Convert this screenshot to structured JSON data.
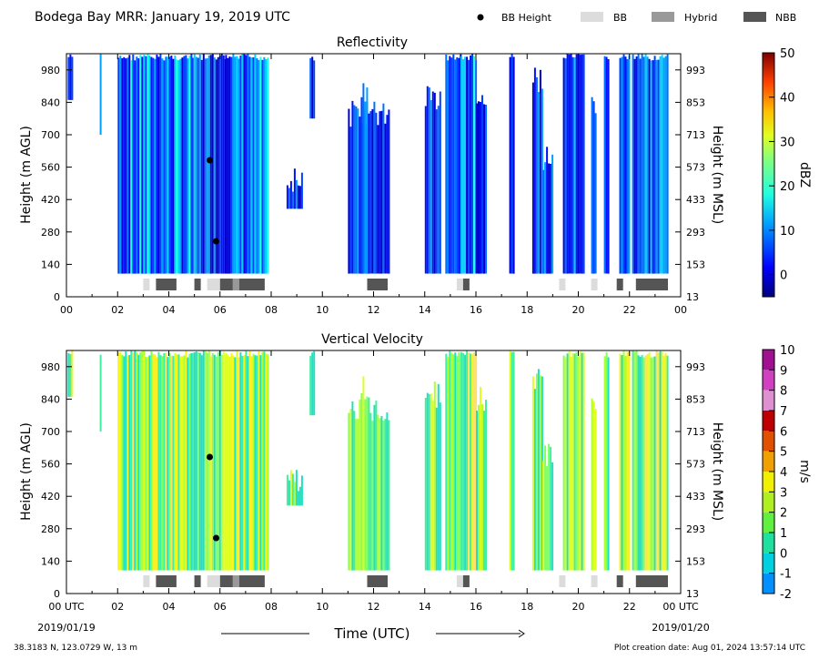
{
  "header": {
    "title": "Bodega Bay MRR:  January 19, 2019 UTC",
    "legend": [
      {
        "label": "BB Height",
        "kind": "dot",
        "color": "#000000"
      },
      {
        "label": "BB",
        "kind": "box",
        "color": "#dcdcdc"
      },
      {
        "label": "Hybrid",
        "kind": "box",
        "color": "#999999"
      },
      {
        "label": "NBB",
        "kind": "box",
        "color": "#555555"
      }
    ]
  },
  "footer": {
    "location": "38.3183 N, 123.0729 W, 13 m",
    "created": "Plot creation date: Aug 01, 2024 13:57:14 UTC"
  },
  "chart_data": [
    {
      "type": "heatmap",
      "title": "Reflectivity",
      "ylabel": "Height (m AGL)",
      "ylabel_right": "Height (m MSL)",
      "x_range_hours": [
        0,
        24
      ],
      "ylim": [
        0,
        1050
      ],
      "x_ticks": [
        "00",
        "02",
        "04",
        "06",
        "08",
        "10",
        "12",
        "14",
        "16",
        "18",
        "20",
        "22",
        "00"
      ],
      "y_ticks_left": [
        0,
        140,
        280,
        420,
        560,
        700,
        840,
        980
      ],
      "y_ticks_right": [
        13,
        153,
        293,
        433,
        573,
        713,
        853,
        993
      ],
      "colorbar": {
        "label": "dBZ",
        "min": -5,
        "max": 50,
        "ticks": [
          0,
          10,
          20,
          30,
          40,
          50
        ]
      },
      "bb_height_points": [
        {
          "hour": 5.6,
          "height_m": 590
        },
        {
          "hour": 5.85,
          "height_m": 240
        }
      ],
      "bb_segments": [
        {
          "start": 3.0,
          "end": 3.25,
          "type": "BB"
        },
        {
          "start": 3.5,
          "end": 4.3,
          "type": "NBB"
        },
        {
          "start": 5.0,
          "end": 5.25,
          "type": "NBB"
        },
        {
          "start": 5.5,
          "end": 6.0,
          "type": "BB"
        },
        {
          "start": 6.0,
          "end": 6.5,
          "type": "NBB"
        },
        {
          "start": 6.5,
          "end": 6.75,
          "type": "Hybrid"
        },
        {
          "start": 6.75,
          "end": 7.75,
          "type": "NBB"
        },
        {
          "start": 11.75,
          "end": 12.55,
          "type": "NBB"
        },
        {
          "start": 15.25,
          "end": 15.5,
          "type": "BB"
        },
        {
          "start": 15.5,
          "end": 15.75,
          "type": "NBB"
        },
        {
          "start": 19.25,
          "end": 19.5,
          "type": "BB"
        },
        {
          "start": 20.5,
          "end": 20.75,
          "type": "BB"
        },
        {
          "start": 21.5,
          "end": 21.75,
          "type": "NBB"
        },
        {
          "start": 22.25,
          "end": 23.5,
          "type": "NBB"
        }
      ]
    },
    {
      "type": "heatmap",
      "title": "Vertical Velocity",
      "ylabel": "Height (m AGL)",
      "ylabel_right": "Height (m MSL)",
      "xlabel": "Time (UTC)",
      "x_range_hours": [
        0,
        24
      ],
      "ylim": [
        0,
        1050
      ],
      "x_ticks": [
        "00 UTC",
        "02",
        "04",
        "06",
        "08",
        "10",
        "12",
        "14",
        "16",
        "18",
        "20",
        "22",
        "00 UTC"
      ],
      "x_dates": [
        "2019/01/19",
        "2019/01/20"
      ],
      "y_ticks_left": [
        0,
        140,
        280,
        420,
        560,
        700,
        840,
        980
      ],
      "y_ticks_right": [
        13,
        153,
        293,
        433,
        573,
        713,
        853,
        993
      ],
      "colorbar": {
        "label": "m/s",
        "min": -2,
        "max": 10,
        "ticks": [
          -2,
          -1,
          0,
          1,
          2,
          3,
          4,
          5,
          6,
          7,
          8,
          9,
          10
        ]
      },
      "bb_height_points": [
        {
          "hour": 5.6,
          "height_m": 590
        },
        {
          "hour": 5.85,
          "height_m": 240
        }
      ],
      "bb_segments": "same as Reflectivity"
    }
  ]
}
